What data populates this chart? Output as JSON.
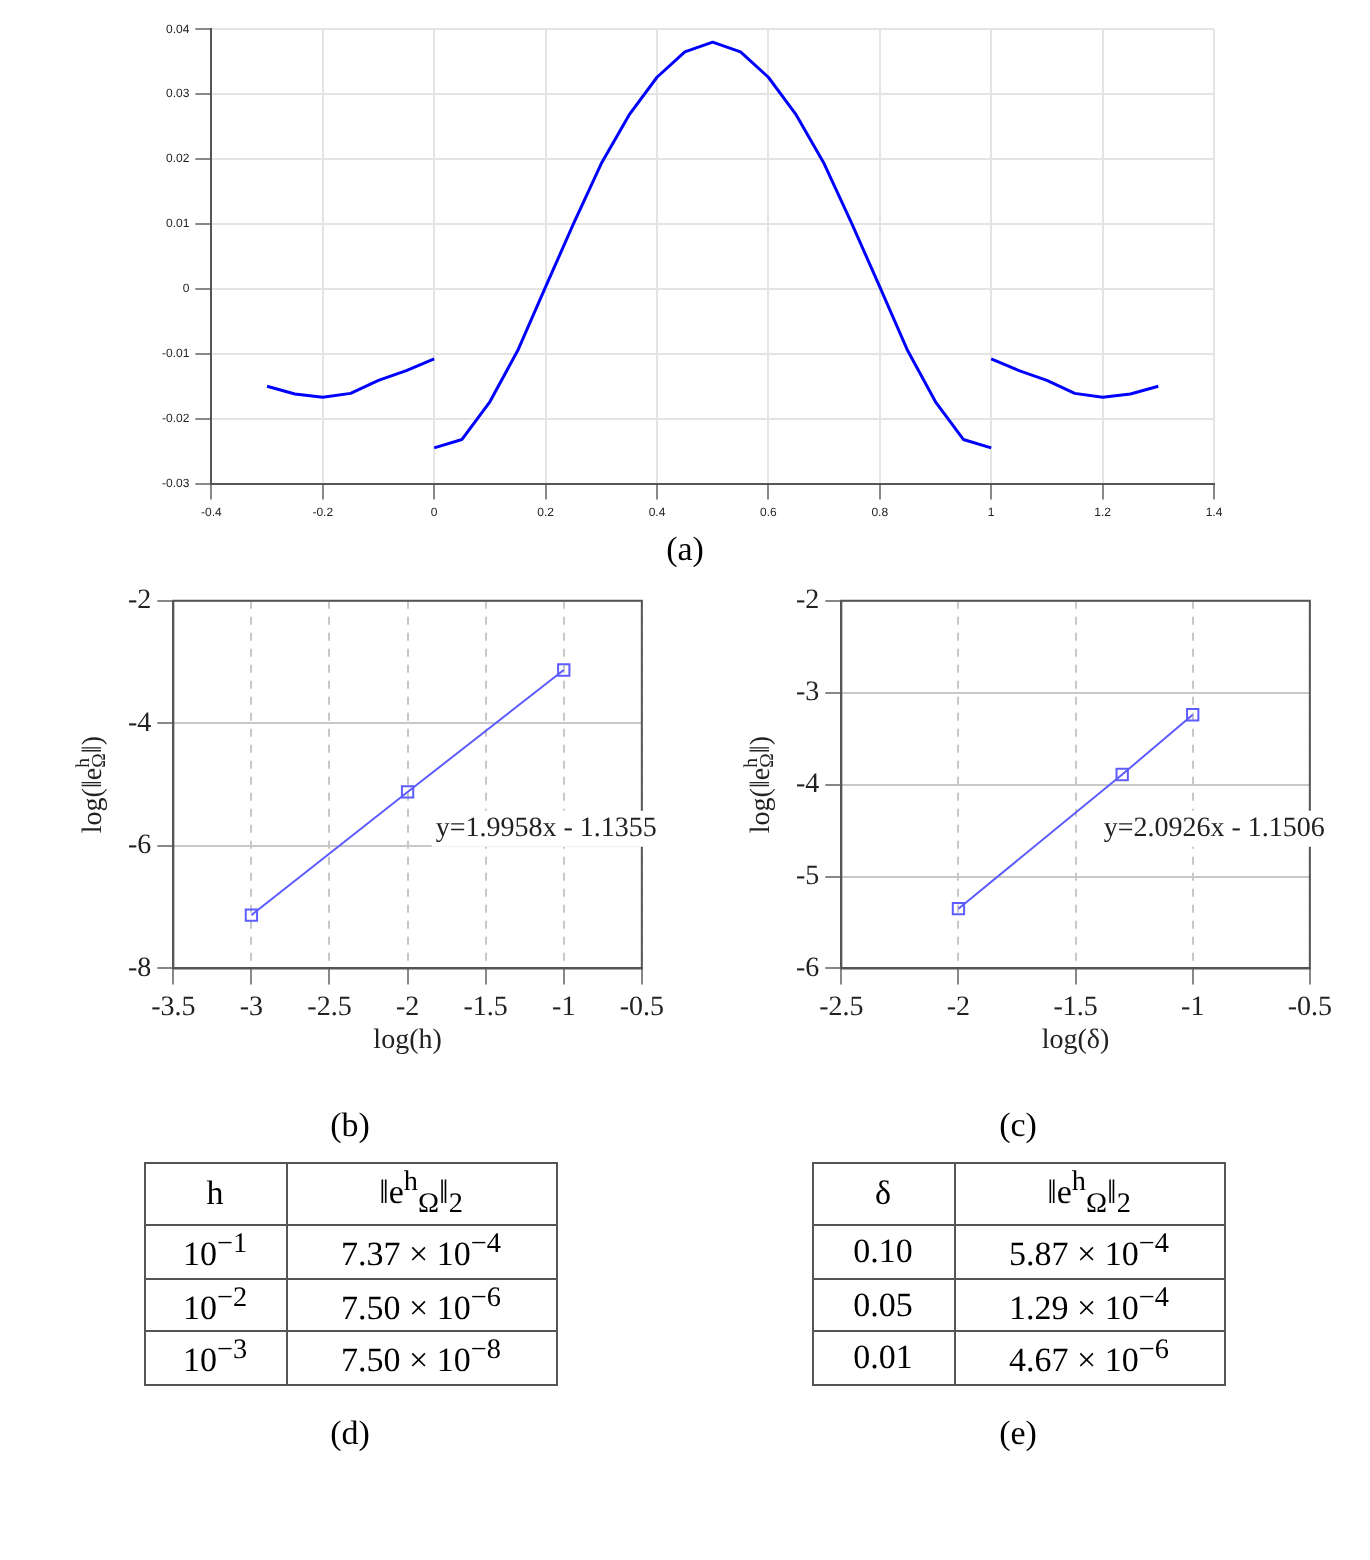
{
  "chart_data": [
    {
      "type": "line",
      "title": "(a)",
      "xlim": [
        -0.4,
        1.4
      ],
      "xticks": [
        -0.4,
        -0.2,
        0,
        0.2,
        0.4,
        0.6,
        0.8,
        1,
        1.2,
        1.4
      ],
      "ylim": [
        -0.03,
        0.04
      ],
      "yticks": [
        -0.03,
        -0.02,
        -0.01,
        0,
        0.01,
        0.02,
        0.03,
        0.04
      ],
      "grid": true,
      "series": [
        {
          "color": "#0000ff",
          "x": [
            -0.3,
            -0.25,
            -0.2,
            -0.15,
            -0.1,
            -0.05,
            0
          ],
          "values": [
            -0.015,
            -0.0162,
            -0.0167,
            -0.0161,
            -0.0141,
            -0.0126,
            -0.0108
          ]
        },
        {
          "color": "#0000ff",
          "x": [
            0,
            0.05,
            0.1,
            0.15,
            0.2,
            0.25,
            0.3,
            0.35,
            0.4,
            0.45,
            0.5,
            0.55,
            0.6,
            0.65,
            0.7,
            0.75,
            0.8,
            0.85,
            0.9,
            0.95,
            1
          ],
          "values": [
            -0.0245,
            -0.0232,
            -0.0174,
            -0.0095,
            0.0003,
            0.01,
            0.0193,
            0.0268,
            0.0326,
            0.0365,
            0.038,
            0.0365,
            0.0326,
            0.0268,
            0.0193,
            0.01,
            0.0003,
            -0.0095,
            -0.0174,
            -0.0232,
            -0.0245
          ]
        },
        {
          "color": "#0000ff",
          "x": [
            1,
            1.05,
            1.1,
            1.15,
            1.2,
            1.25,
            1.3
          ],
          "values": [
            -0.0108,
            -0.0126,
            -0.0141,
            -0.0161,
            -0.0167,
            -0.0162,
            -0.015
          ]
        }
      ]
    },
    {
      "type": "line",
      "title": "(b)",
      "xlabel": "log(h)",
      "ylabel": "log(‖e$^{h}$$_{Ω}$‖)",
      "xlim": [
        -3.5,
        -0.5
      ],
      "xticks": [
        -3.5,
        -3,
        -2.5,
        -2,
        -1.5,
        -1,
        -0.5
      ],
      "ylim": [
        -8,
        -2
      ],
      "yticks": [
        -8,
        -6,
        -4,
        -2
      ],
      "grid": true,
      "marker": "square",
      "x": [
        -3,
        -2,
        -1
      ],
      "series": [
        {
          "color": "#5c5cff",
          "values": [
            -7.13,
            -5.12,
            -3.13
          ]
        }
      ],
      "annotations": [
        "y=1.9958x - 1.1355"
      ]
    },
    {
      "type": "line",
      "title": "(c)",
      "xlabel": "log(δ)",
      "ylabel": "log(‖e$^{h}$$_{Ω}$‖)",
      "xlim": [
        -2.5,
        -0.5
      ],
      "xticks": [
        -2.5,
        -2,
        -1.5,
        -1,
        -0.5
      ],
      "ylim": [
        -6,
        -2
      ],
      "yticks": [
        -6,
        -5,
        -4,
        -3,
        -2
      ],
      "grid": true,
      "marker": "square",
      "x": [
        -2,
        -1.301,
        -1
      ],
      "series": [
        {
          "color": "#5c5cff",
          "values": [
            -5.35,
            -3.89,
            -3.24
          ]
        }
      ],
      "annotations": [
        "y=2.0926x - 1.1506"
      ]
    },
    {
      "type": "other",
      "title": "(d)",
      "annotations": [
        "h",
        "‖e$^{h}$$_{Ω}$‖$_{2}$",
        "10$^{−1}$",
        "7.37 × 10$^{−4}$",
        "10$^{−2}$",
        "7.50 × 10$^{−6}$",
        "10$^{−3}$",
        "7.50 × 10$^{−8}$"
      ]
    },
    {
      "type": "other",
      "title": "(e)",
      "annotations": [
        "δ",
        "‖e$^{h}$$_{Ω}$‖$_{2}$",
        "0.10",
        "5.87 × 10$^{−4}$",
        "0.05",
        "1.29 × 10$^{−4}$",
        "0.01",
        "4.67 × 10$^{−6}$"
      ]
    }
  ]
}
